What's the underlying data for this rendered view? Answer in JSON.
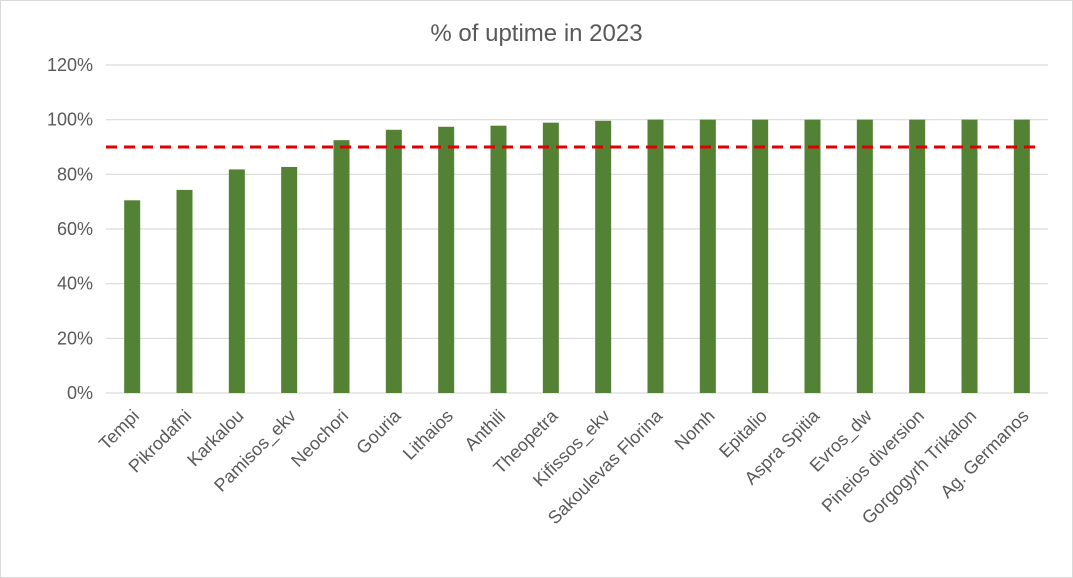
{
  "chart_data": {
    "type": "bar",
    "title": "% of uptime in 2023",
    "xlabel": "",
    "ylabel": "",
    "categories": [
      "Tempi",
      "Pikrodafni",
      "Karkalou",
      "Pamisos_ekv",
      "Neochori",
      "Gouria",
      "Lithaios",
      "Anthili",
      "Theopetra",
      "Kifissos_ekv",
      "Sakoulevas Florina",
      "Nomh",
      "Epitalio",
      "Aspra Spitia",
      "Evros_dw",
      "Pineios diversion",
      "Gorgogyrh Trikalon",
      "Ag. Germanos"
    ],
    "values": [
      70.5,
      74.3,
      81.8,
      82.7,
      92.5,
      96.3,
      97.4,
      97.8,
      98.9,
      99.6,
      100,
      100,
      100,
      100,
      100,
      100,
      100,
      100
    ],
    "ylim": [
      0,
      120
    ],
    "yticks": [
      "0%",
      "20%",
      "40%",
      "60%",
      "80%",
      "100%",
      "120%"
    ],
    "ytick_values": [
      0,
      20,
      40,
      60,
      80,
      100,
      120
    ],
    "threshold": 90,
    "grid": true,
    "legend": "none",
    "colors": {
      "bar": "#548235",
      "threshold": "#e00000",
      "grid": "#d9d9d9",
      "text": "#595959"
    }
  }
}
